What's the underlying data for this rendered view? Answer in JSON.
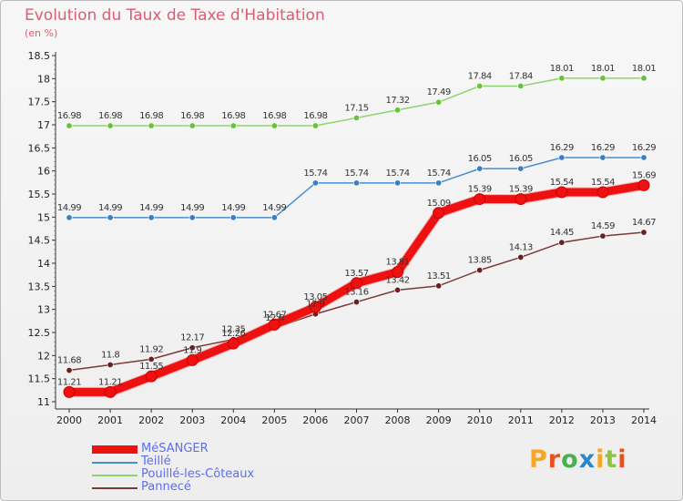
{
  "header": {
    "title": "Evolution du Taux de Taxe d'Habitation",
    "subtitle": "(en %)"
  },
  "logo": {
    "text": "Proxiti",
    "letter_colors": [
      "#f5a623",
      "#e8511e",
      "#4caf50",
      "#2d86c9",
      "#f5a623",
      "#8cc63f",
      "#e8511e"
    ]
  },
  "chart_data": {
    "type": "line",
    "title": "Evolution du Taux de Taxe d'Habitation",
    "subtitle": "(en %)",
    "xlabel": "",
    "ylabel": "",
    "categories": [
      "2000",
      "2001",
      "2002",
      "2003",
      "2004",
      "2005",
      "2006",
      "2007",
      "2008",
      "2009",
      "2010",
      "2011",
      "2012",
      "2013",
      "2014"
    ],
    "ylim": [
      11,
      18.5
    ],
    "yticks": [
      "11",
      "11.5",
      "12",
      "12.5",
      "13",
      "13.5",
      "14",
      "14.5",
      "15",
      "15.5",
      "16",
      "16.5",
      "17",
      "17.5",
      "18",
      "18.5"
    ],
    "grid": false,
    "legend_position": "bottom-left",
    "series": [
      {
        "name": "MéSANGER",
        "color": "#ee1111",
        "marker": "#ee1111",
        "width": 9,
        "values": [
          11.21,
          11.21,
          11.55,
          11.9,
          12.26,
          12.67,
          13.05,
          13.57,
          13.81,
          15.09,
          15.39,
          15.39,
          15.54,
          15.54,
          15.69
        ]
      },
      {
        "name": "Teillé",
        "color": "#4a8ed0",
        "marker": "#3a7fc2",
        "width": 1.5,
        "values": [
          14.99,
          14.99,
          14.99,
          14.99,
          14.99,
          14.99,
          15.74,
          15.74,
          15.74,
          15.74,
          16.05,
          16.05,
          16.29,
          16.29,
          16.29
        ]
      },
      {
        "name": "Pouillé-les-Côteaux",
        "color": "#8fd36e",
        "marker": "#66c236",
        "width": 1.5,
        "values": [
          16.98,
          16.98,
          16.98,
          16.98,
          16.98,
          16.98,
          16.98,
          17.15,
          17.32,
          17.49,
          17.84,
          17.84,
          18.01,
          18.01,
          18.01
        ]
      },
      {
        "name": "Pannecé",
        "color": "#7a3a3a",
        "marker": "#6a2020",
        "width": 1.5,
        "values": [
          11.68,
          11.8,
          11.92,
          12.17,
          12.35,
          12.6,
          12.9,
          13.16,
          13.42,
          13.51,
          13.85,
          14.13,
          14.45,
          14.59,
          14.67
        ]
      }
    ]
  }
}
